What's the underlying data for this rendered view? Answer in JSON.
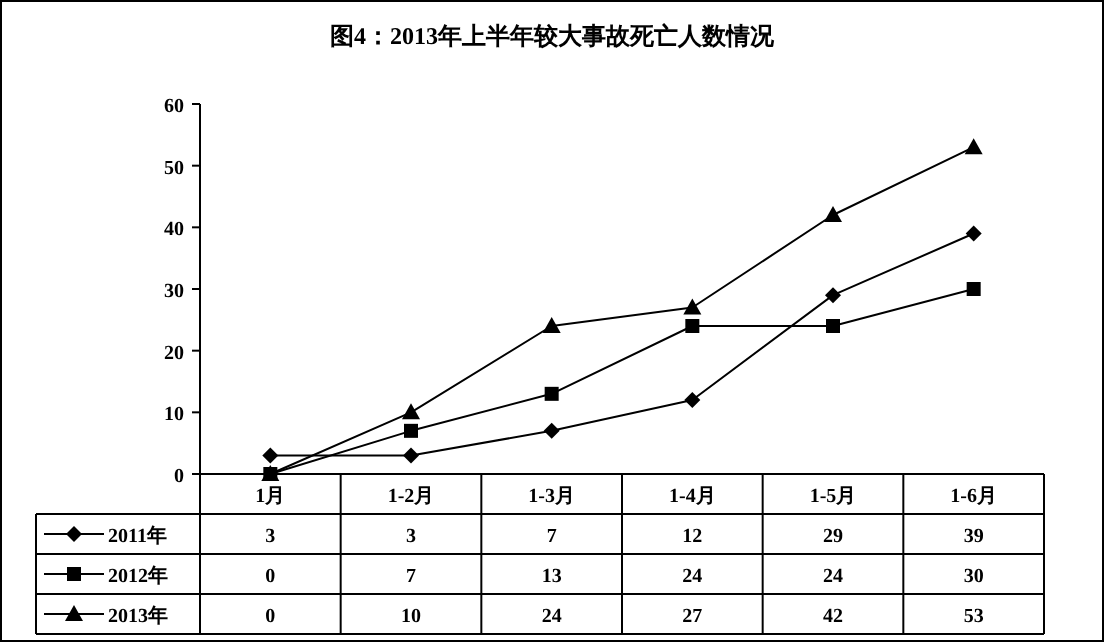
{
  "chart_data": {
    "type": "line",
    "title": "图4：2013年上半年较大事故死亡人数情况",
    "categories": [
      "1月",
      "1-2月",
      "1-3月",
      "1-4月",
      "1-5月",
      "1-6月"
    ],
    "series": [
      {
        "name": "2011年",
        "color": "#000000",
        "marker": "diamond",
        "values": [
          3,
          3,
          7,
          12,
          29,
          39
        ]
      },
      {
        "name": "2012年",
        "color": "#000000",
        "marker": "square",
        "values": [
          0,
          7,
          13,
          24,
          24,
          30
        ]
      },
      {
        "name": "2013年",
        "color": "#000000",
        "marker": "triangle",
        "values": [
          0,
          10,
          24,
          27,
          42,
          53
        ]
      }
    ],
    "ylim": [
      0,
      60
    ],
    "yticks": [
      0,
      10,
      20,
      30,
      40,
      50,
      60
    ],
    "grid": false,
    "legend": "bottom left",
    "data_labels": true,
    "line_style": "solid"
  }
}
